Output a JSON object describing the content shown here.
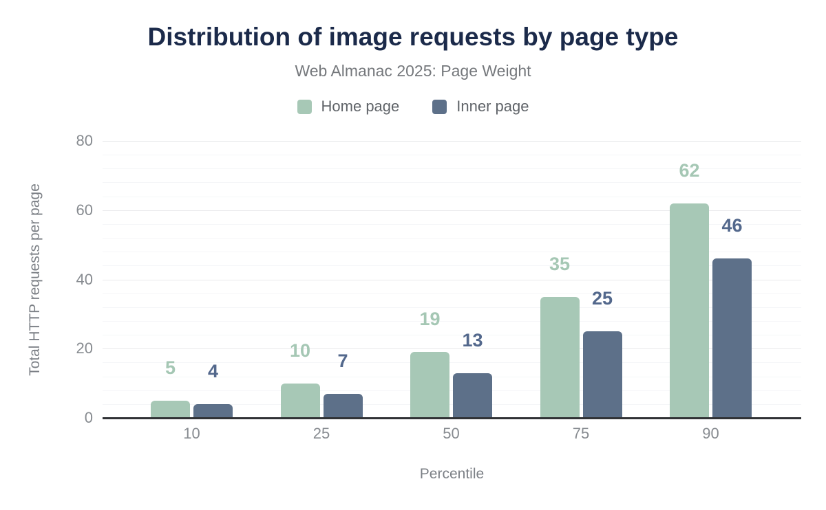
{
  "chart_data": {
    "type": "bar",
    "title": "Distribution of image requests by page type",
    "subtitle": "Web Almanac 2025: Page Weight",
    "categories": [
      "10",
      "25",
      "50",
      "75",
      "90"
    ],
    "series": [
      {
        "name": "Home page",
        "color": "#a7c8b6",
        "label_color": "#a5c7b4",
        "values": [
          5,
          10,
          19,
          35,
          62
        ]
      },
      {
        "name": "Inner page",
        "color": "#5d7089",
        "label_color": "#53688c",
        "values": [
          4,
          7,
          13,
          25,
          46
        ]
      }
    ],
    "xlabel": "Percentile",
    "ylabel": "Total HTTP requests per page",
    "ylim": [
      0,
      80
    ],
    "yticks": [
      0,
      20,
      40,
      60,
      80
    ],
    "minor_tick_step": 4,
    "grid": true,
    "legend_position": "top",
    "data_labels": true,
    "colors": {
      "title": "#1b2a4a",
      "subtitle": "#75787c",
      "axis_line": "#303235",
      "tick_text": "#878b90",
      "axis_title_text": "#7c8086",
      "legend_text": "#5f6368",
      "gridline_major": "#e8e9eb",
      "gridline_minor": "#f5f6f8",
      "background": "#ffffff"
    }
  }
}
